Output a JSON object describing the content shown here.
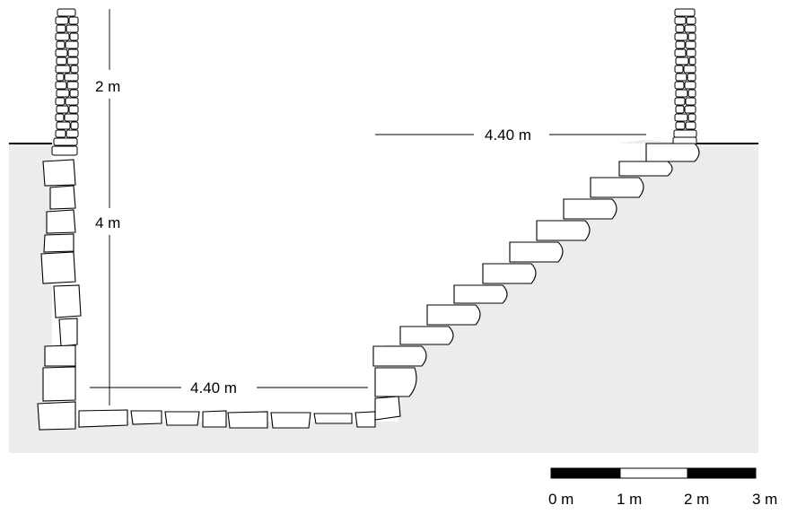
{
  "diagram": {
    "dimensions": {
      "wall_height": "2 m",
      "depth": "4 m",
      "top_width": "4.40 m",
      "bottom_width": "4.40 m"
    },
    "scale_bar": {
      "labels": [
        "0 m",
        "1 m",
        "2 m",
        "3 m"
      ]
    },
    "colors": {
      "ground_fill": "#ececec",
      "stone_fill": "#ffffff",
      "line": "#000000"
    }
  }
}
